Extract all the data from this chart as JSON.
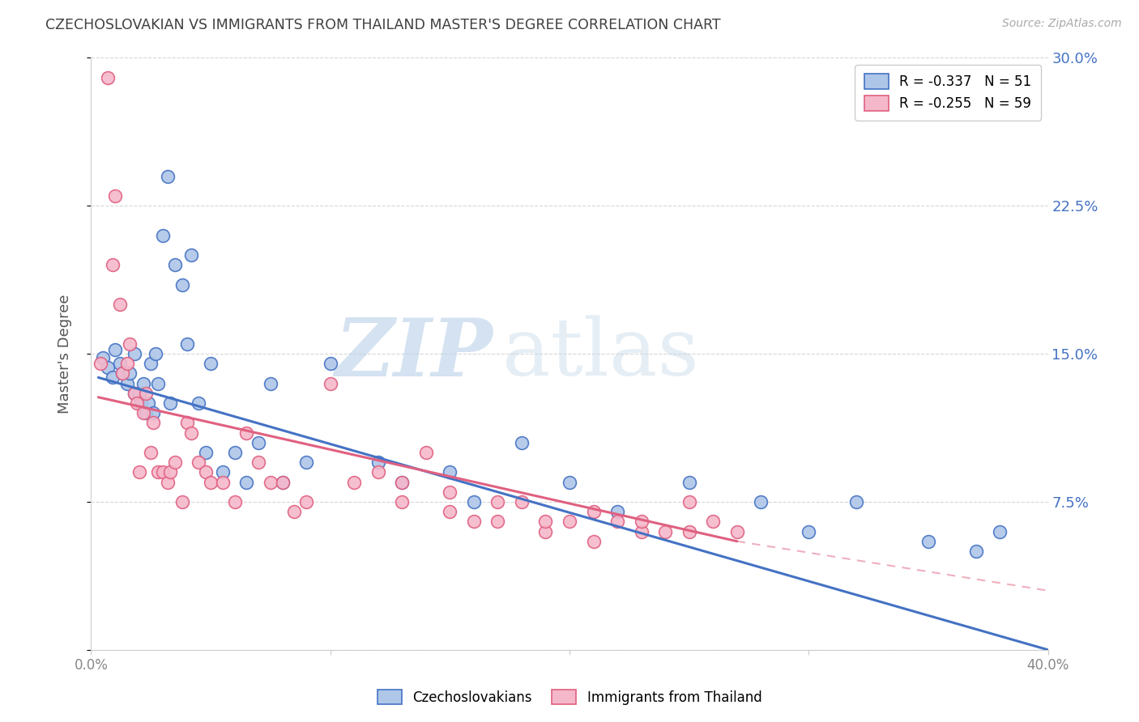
{
  "title": "CZECHOSLOVAKIAN VS IMMIGRANTS FROM THAILAND MASTER'S DEGREE CORRELATION CHART",
  "source": "Source: ZipAtlas.com",
  "ylabel": "Master's Degree",
  "watermark_zip": "ZIP",
  "watermark_atlas": "atlas",
  "xlim": [
    0.0,
    0.4
  ],
  "ylim": [
    0.0,
    0.3
  ],
  "yticks": [
    0.0,
    0.075,
    0.15,
    0.225,
    0.3
  ],
  "ytick_labels": [
    "",
    "7.5%",
    "15.0%",
    "22.5%",
    "30.0%"
  ],
  "xticks": [
    0.0,
    0.1,
    0.2,
    0.3,
    0.4
  ],
  "xtick_labels": [
    "0.0%",
    "",
    "",
    "",
    "40.0%"
  ],
  "legend_entries": [
    {
      "label": "R = -0.337   N = 51",
      "color": "#aec6e8"
    },
    {
      "label": "R = -0.255   N = 59",
      "color": "#f5b8cb"
    }
  ],
  "legend_labels_bottom": [
    "Czechoslovakians",
    "Immigrants from Thailand"
  ],
  "series1_color": "#aec6e8",
  "series2_color": "#f5b8cb",
  "line1_color": "#4472c4",
  "line2_color": "#e06080",
  "background_color": "#ffffff",
  "grid_color": "#cccccc",
  "title_color": "#404040",
  "right_axis_color": "#4472c4",
  "series1_x": [
    0.005,
    0.007,
    0.009,
    0.01,
    0.012,
    0.013,
    0.015,
    0.016,
    0.018,
    0.018,
    0.02,
    0.021,
    0.022,
    0.023,
    0.024,
    0.025,
    0.026,
    0.027,
    0.028,
    0.03,
    0.032,
    0.033,
    0.035,
    0.038,
    0.04,
    0.042,
    0.045,
    0.048,
    0.05,
    0.055,
    0.06,
    0.065,
    0.07,
    0.075,
    0.08,
    0.09,
    0.1,
    0.12,
    0.13,
    0.15,
    0.16,
    0.18,
    0.2,
    0.22,
    0.25,
    0.28,
    0.3,
    0.32,
    0.35,
    0.37,
    0.38
  ],
  "series1_y": [
    0.148,
    0.143,
    0.138,
    0.152,
    0.145,
    0.14,
    0.135,
    0.14,
    0.15,
    0.13,
    0.13,
    0.125,
    0.135,
    0.12,
    0.125,
    0.145,
    0.12,
    0.15,
    0.135,
    0.21,
    0.24,
    0.125,
    0.195,
    0.185,
    0.155,
    0.2,
    0.125,
    0.1,
    0.145,
    0.09,
    0.1,
    0.085,
    0.105,
    0.135,
    0.085,
    0.095,
    0.145,
    0.095,
    0.085,
    0.09,
    0.075,
    0.105,
    0.085,
    0.07,
    0.085,
    0.075,
    0.06,
    0.075,
    0.055,
    0.05,
    0.06
  ],
  "series2_x": [
    0.004,
    0.007,
    0.009,
    0.01,
    0.012,
    0.013,
    0.015,
    0.016,
    0.018,
    0.019,
    0.02,
    0.022,
    0.023,
    0.025,
    0.026,
    0.028,
    0.03,
    0.032,
    0.033,
    0.035,
    0.038,
    0.04,
    0.042,
    0.045,
    0.048,
    0.05,
    0.055,
    0.06,
    0.065,
    0.07,
    0.075,
    0.08,
    0.085,
    0.09,
    0.1,
    0.11,
    0.12,
    0.13,
    0.14,
    0.15,
    0.16,
    0.17,
    0.18,
    0.19,
    0.2,
    0.21,
    0.22,
    0.23,
    0.24,
    0.25,
    0.26,
    0.13,
    0.15,
    0.17,
    0.19,
    0.21,
    0.23,
    0.25,
    0.27
  ],
  "series2_y": [
    0.145,
    0.29,
    0.195,
    0.23,
    0.175,
    0.14,
    0.145,
    0.155,
    0.13,
    0.125,
    0.09,
    0.12,
    0.13,
    0.1,
    0.115,
    0.09,
    0.09,
    0.085,
    0.09,
    0.095,
    0.075,
    0.115,
    0.11,
    0.095,
    0.09,
    0.085,
    0.085,
    0.075,
    0.11,
    0.095,
    0.085,
    0.085,
    0.07,
    0.075,
    0.135,
    0.085,
    0.09,
    0.085,
    0.1,
    0.08,
    0.065,
    0.065,
    0.075,
    0.06,
    0.065,
    0.055,
    0.065,
    0.06,
    0.06,
    0.075,
    0.065,
    0.075,
    0.07,
    0.075,
    0.065,
    0.07,
    0.065,
    0.06,
    0.06
  ],
  "line1_x_start": 0.003,
  "line1_x_end": 0.4,
  "line1_y_start": 0.138,
  "line1_y_end": 0.0,
  "line2_x_start": 0.003,
  "line2_x_end": 0.27,
  "line2_y_start": 0.128,
  "line2_y_end": 0.055
}
